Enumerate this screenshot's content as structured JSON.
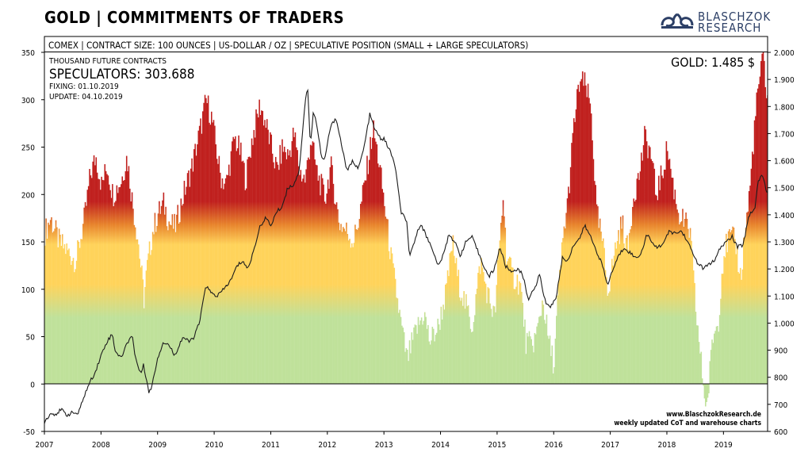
{
  "title": "GOLD | COMMITMENTS OF TRADERS",
  "logo": {
    "line1": "BLASCHZOK",
    "line2": "RESEARCH",
    "icon": "twin-swan-logo"
  },
  "header_bar": "COMEX  |  CONTRACT SIZE: 100 OUNCES  |  US-DOLLAR / OZ  |  SPECULATIVE  POSITION (SMALL + LARGE SPECULATORS)",
  "info": {
    "units": "THOUSAND FUTURE CONTRACTS",
    "speculators": "SPECULATORS: 303.688",
    "fixing": "FIXING: 01.10.2019",
    "update": "UPDATE: 04.10.2019",
    "gold_price": "GOLD: 1.485 $"
  },
  "credit": {
    "line1": "www.BlaschzokResearch.de",
    "line2": "weekly updated CoT and warehouse charts"
  },
  "colors": {
    "red": "#c0201e",
    "orange": "#e8842c",
    "yellow": "#ffd35a",
    "green": "#bfe19a",
    "line": "#1c1c1c"
  },
  "chart_data": {
    "type": "bar",
    "x_ticks": [
      "2007",
      "2008",
      "2009",
      "2010",
      "2011",
      "2012",
      "2013",
      "2014",
      "2015",
      "2016",
      "2017",
      "2018",
      "2019"
    ],
    "left_axis": {
      "ticks": [
        "350",
        "300",
        "250",
        "200",
        "150",
        "100",
        "50",
        "0",
        "-50"
      ],
      "ylim": [
        -50,
        350
      ]
    },
    "right_axis": {
      "ticks": [
        "2.000",
        "1.900",
        "1.800",
        "1.700",
        "1.600",
        "1.500",
        "1.400",
        "1.300",
        "1.200",
        "1.100",
        "1.000",
        "900",
        "800",
        "700",
        "600"
      ],
      "ylim": [
        600,
        2000
      ]
    },
    "series": [
      {
        "name": "SPECULATORS",
        "axis": "left",
        "points": [
          [
            2007.0,
            160
          ],
          [
            2007.1,
            175
          ],
          [
            2007.25,
            150
          ],
          [
            2007.4,
            140
          ],
          [
            2007.55,
            130
          ],
          [
            2007.7,
            175
          ],
          [
            2007.8,
            220
          ],
          [
            2007.9,
            240
          ],
          [
            2008.0,
            210
          ],
          [
            2008.1,
            230
          ],
          [
            2008.2,
            200
          ],
          [
            2008.35,
            215
          ],
          [
            2008.45,
            240
          ],
          [
            2008.55,
            190
          ],
          [
            2008.65,
            150
          ],
          [
            2008.75,
            90
          ],
          [
            2008.8,
            120
          ],
          [
            2008.9,
            160
          ],
          [
            2009.0,
            180
          ],
          [
            2009.1,
            190
          ],
          [
            2009.2,
            170
          ],
          [
            2009.3,
            165
          ],
          [
            2009.45,
            200
          ],
          [
            2009.6,
            230
          ],
          [
            2009.75,
            270
          ],
          [
            2009.85,
            300
          ],
          [
            2009.95,
            280
          ],
          [
            2010.1,
            220
          ],
          [
            2010.2,
            210
          ],
          [
            2010.35,
            260
          ],
          [
            2010.45,
            245
          ],
          [
            2010.55,
            215
          ],
          [
            2010.65,
            255
          ],
          [
            2010.8,
            295
          ],
          [
            2010.9,
            275
          ],
          [
            2011.0,
            250
          ],
          [
            2011.1,
            225
          ],
          [
            2011.2,
            250
          ],
          [
            2011.3,
            240
          ],
          [
            2011.4,
            265
          ],
          [
            2011.5,
            225
          ],
          [
            2011.6,
            215
          ],
          [
            2011.7,
            260
          ],
          [
            2011.8,
            225
          ],
          [
            2011.95,
            195
          ],
          [
            2012.05,
            230
          ],
          [
            2012.2,
            170
          ],
          [
            2012.35,
            160
          ],
          [
            2012.45,
            150
          ],
          [
            2012.55,
            175
          ],
          [
            2012.7,
            230
          ],
          [
            2012.8,
            270
          ],
          [
            2012.9,
            235
          ],
          [
            2013.0,
            190
          ],
          [
            2013.1,
            140
          ],
          [
            2013.2,
            100
          ],
          [
            2013.3,
            60
          ],
          [
            2013.4,
            25
          ],
          [
            2013.55,
            55
          ],
          [
            2013.7,
            75
          ],
          [
            2013.8,
            45
          ],
          [
            2013.95,
            60
          ],
          [
            2014.1,
            100
          ],
          [
            2014.2,
            150
          ],
          [
            2014.3,
            110
          ],
          [
            2014.45,
            80
          ],
          [
            2014.55,
            60
          ],
          [
            2014.7,
            130
          ],
          [
            2014.8,
            100
          ],
          [
            2014.95,
            70
          ],
          [
            2015.0,
            120
          ],
          [
            2015.05,
            160
          ],
          [
            2015.1,
            200
          ],
          [
            2015.15,
            140
          ],
          [
            2015.25,
            115
          ],
          [
            2015.4,
            105
          ],
          [
            2015.5,
            45
          ],
          [
            2015.6,
            40
          ],
          [
            2015.7,
            55
          ],
          [
            2015.8,
            90
          ],
          [
            2015.9,
            45
          ],
          [
            2016.0,
            20
          ],
          [
            2016.05,
            80
          ],
          [
            2016.15,
            150
          ],
          [
            2016.25,
            200
          ],
          [
            2016.35,
            275
          ],
          [
            2016.45,
            320
          ],
          [
            2016.55,
            315
          ],
          [
            2016.65,
            290
          ],
          [
            2016.75,
            180
          ],
          [
            2016.85,
            150
          ],
          [
            2016.95,
            100
          ],
          [
            2017.0,
            115
          ],
          [
            2017.1,
            150
          ],
          [
            2017.2,
            170
          ],
          [
            2017.3,
            140
          ],
          [
            2017.4,
            200
          ],
          [
            2017.5,
            220
          ],
          [
            2017.6,
            260
          ],
          [
            2017.7,
            245
          ],
          [
            2017.8,
            200
          ],
          [
            2017.9,
            220
          ],
          [
            2018.0,
            250
          ],
          [
            2018.1,
            210
          ],
          [
            2018.2,
            180
          ],
          [
            2018.3,
            170
          ],
          [
            2018.4,
            160
          ],
          [
            2018.5,
            80
          ],
          [
            2018.6,
            20
          ],
          [
            2018.65,
            -10
          ],
          [
            2018.7,
            -25
          ],
          [
            2018.8,
            50
          ],
          [
            2018.9,
            65
          ],
          [
            2018.95,
            110
          ],
          [
            2019.0,
            140
          ],
          [
            2019.1,
            155
          ],
          [
            2019.2,
            150
          ],
          [
            2019.3,
            110
          ],
          [
            2019.35,
            150
          ],
          [
            2019.45,
            200
          ],
          [
            2019.55,
            280
          ],
          [
            2019.62,
            320
          ],
          [
            2019.7,
            345
          ],
          [
            2019.75,
            303.688
          ]
        ]
      },
      {
        "name": "GOLD",
        "axis": "right",
        "points": [
          [
            2007.0,
            635
          ],
          [
            2007.1,
            665
          ],
          [
            2007.2,
            665
          ],
          [
            2007.3,
            680
          ],
          [
            2007.4,
            660
          ],
          [
            2007.5,
            670
          ],
          [
            2007.6,
            665
          ],
          [
            2007.7,
            730
          ],
          [
            2007.8,
            780
          ],
          [
            2007.9,
            820
          ],
          [
            2008.0,
            880
          ],
          [
            2008.1,
            930
          ],
          [
            2008.2,
            960
          ],
          [
            2008.25,
            900
          ],
          [
            2008.35,
            870
          ],
          [
            2008.45,
            920
          ],
          [
            2008.55,
            960
          ],
          [
            2008.6,
            880
          ],
          [
            2008.7,
            810
          ],
          [
            2008.75,
            850
          ],
          [
            2008.85,
            740
          ],
          [
            2008.9,
            770
          ],
          [
            2009.0,
            870
          ],
          [
            2009.1,
            930
          ],
          [
            2009.2,
            920
          ],
          [
            2009.3,
            880
          ],
          [
            2009.45,
            950
          ],
          [
            2009.55,
            930
          ],
          [
            2009.65,
            950
          ],
          [
            2009.75,
            1010
          ],
          [
            2009.85,
            1140
          ],
          [
            2009.95,
            1110
          ],
          [
            2010.05,
            1100
          ],
          [
            2010.15,
            1120
          ],
          [
            2010.3,
            1160
          ],
          [
            2010.4,
            1210
          ],
          [
            2010.5,
            1230
          ],
          [
            2010.6,
            1200
          ],
          [
            2010.7,
            1270
          ],
          [
            2010.8,
            1350
          ],
          [
            2010.9,
            1390
          ],
          [
            2011.0,
            1360
          ],
          [
            2011.1,
            1410
          ],
          [
            2011.2,
            1430
          ],
          [
            2011.3,
            1500
          ],
          [
            2011.4,
            1510
          ],
          [
            2011.5,
            1560
          ],
          [
            2011.6,
            1800
          ],
          [
            2011.65,
            1880
          ],
          [
            2011.7,
            1650
          ],
          [
            2011.75,
            1780
          ],
          [
            2011.8,
            1750
          ],
          [
            2011.9,
            1610
          ],
          [
            2011.95,
            1600
          ],
          [
            2012.05,
            1720
          ],
          [
            2012.15,
            1760
          ],
          [
            2012.25,
            1660
          ],
          [
            2012.35,
            1560
          ],
          [
            2012.45,
            1600
          ],
          [
            2012.55,
            1570
          ],
          [
            2012.65,
            1650
          ],
          [
            2012.75,
            1770
          ],
          [
            2012.85,
            1710
          ],
          [
            2012.95,
            1680
          ],
          [
            2013.0,
            1680
          ],
          [
            2013.1,
            1640
          ],
          [
            2013.2,
            1580
          ],
          [
            2013.3,
            1410
          ],
          [
            2013.4,
            1380
          ],
          [
            2013.45,
            1240
          ],
          [
            2013.55,
            1310
          ],
          [
            2013.65,
            1370
          ],
          [
            2013.75,
            1320
          ],
          [
            2013.85,
            1280
          ],
          [
            2013.95,
            1210
          ],
          [
            2014.05,
            1250
          ],
          [
            2014.15,
            1330
          ],
          [
            2014.25,
            1300
          ],
          [
            2014.35,
            1250
          ],
          [
            2014.45,
            1300
          ],
          [
            2014.55,
            1320
          ],
          [
            2014.65,
            1270
          ],
          [
            2014.75,
            1220
          ],
          [
            2014.85,
            1170
          ],
          [
            2014.95,
            1200
          ],
          [
            2015.05,
            1280
          ],
          [
            2015.15,
            1210
          ],
          [
            2015.25,
            1190
          ],
          [
            2015.35,
            1200
          ],
          [
            2015.45,
            1180
          ],
          [
            2015.55,
            1090
          ],
          [
            2015.65,
            1120
          ],
          [
            2015.75,
            1180
          ],
          [
            2015.85,
            1080
          ],
          [
            2015.95,
            1060
          ],
          [
            2016.05,
            1100
          ],
          [
            2016.15,
            1240
          ],
          [
            2016.25,
            1230
          ],
          [
            2016.35,
            1290
          ],
          [
            2016.45,
            1310
          ],
          [
            2016.55,
            1360
          ],
          [
            2016.65,
            1320
          ],
          [
            2016.75,
            1270
          ],
          [
            2016.85,
            1220
          ],
          [
            2016.95,
            1140
          ],
          [
            2017.05,
            1200
          ],
          [
            2017.15,
            1250
          ],
          [
            2017.25,
            1280
          ],
          [
            2017.35,
            1260
          ],
          [
            2017.45,
            1240
          ],
          [
            2017.55,
            1260
          ],
          [
            2017.65,
            1330
          ],
          [
            2017.75,
            1290
          ],
          [
            2017.85,
            1280
          ],
          [
            2017.95,
            1300
          ],
          [
            2018.05,
            1340
          ],
          [
            2018.15,
            1330
          ],
          [
            2018.25,
            1340
          ],
          [
            2018.35,
            1310
          ],
          [
            2018.45,
            1260
          ],
          [
            2018.55,
            1220
          ],
          [
            2018.65,
            1200
          ],
          [
            2018.75,
            1220
          ],
          [
            2018.85,
            1230
          ],
          [
            2018.95,
            1280
          ],
          [
            2019.05,
            1300
          ],
          [
            2019.15,
            1320
          ],
          [
            2019.25,
            1280
          ],
          [
            2019.35,
            1290
          ],
          [
            2019.45,
            1400
          ],
          [
            2019.55,
            1420
          ],
          [
            2019.62,
            1530
          ],
          [
            2019.7,
            1550
          ],
          [
            2019.75,
            1485
          ]
        ]
      }
    ]
  }
}
